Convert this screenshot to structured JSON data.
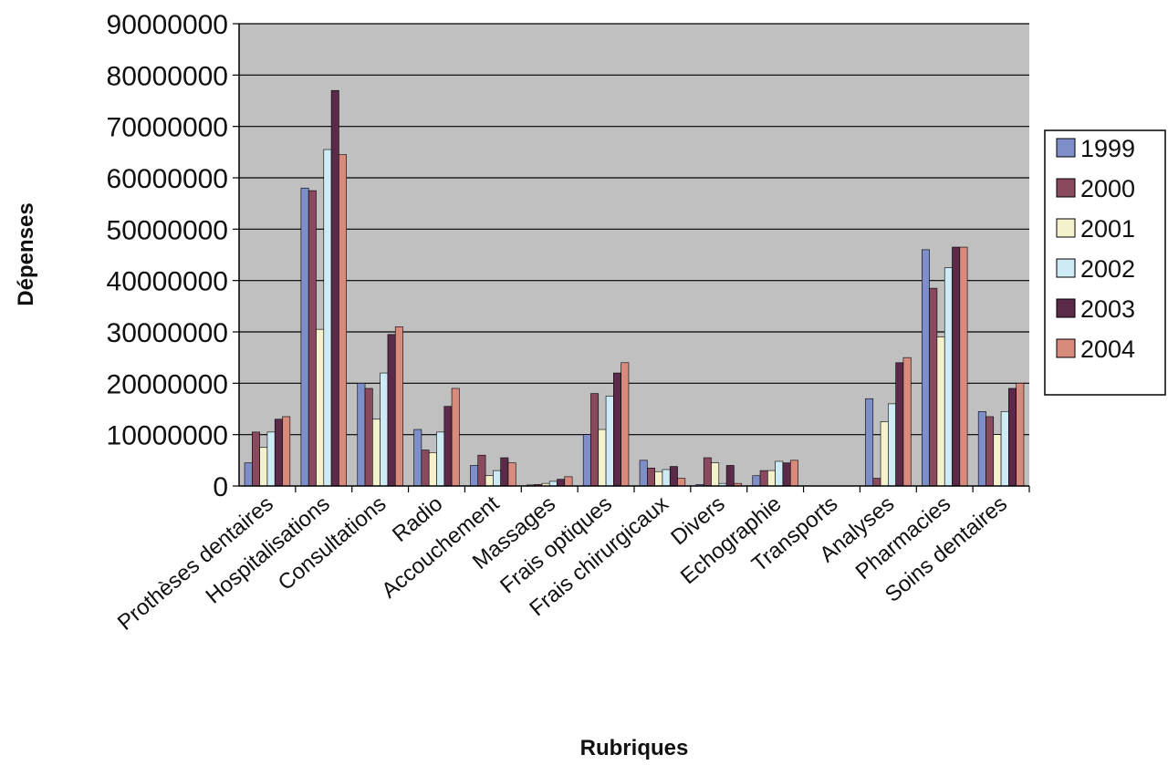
{
  "chart_data": {
    "type": "bar",
    "xlabel": "Rubriques",
    "ylabel": "Dépenses",
    "ylim": [
      0,
      90000000
    ],
    "yticks": [
      0,
      10000000,
      20000000,
      30000000,
      40000000,
      50000000,
      60000000,
      70000000,
      80000000,
      90000000
    ],
    "grid": true,
    "legend_position": "right",
    "plot_background": "#c0c0c0",
    "categories": [
      "Prothèses dentaires",
      "Hospitalisations",
      "Consultations",
      "Radio",
      "Accouchement",
      "Massages",
      "Frais optiques",
      "Frais chirurgicaux",
      "Divers",
      "Echographie",
      "Transports",
      "Analyses",
      "Pharmacies",
      "Soins dentaires"
    ],
    "series": [
      {
        "name": "1999",
        "color": "#7d8ec8",
        "values": [
          4500000,
          58000000,
          20000000,
          11000000,
          4000000,
          200000,
          10000000,
          5000000,
          300000,
          2000000,
          0,
          17000000,
          46000000,
          14500000
        ]
      },
      {
        "name": "2000",
        "color": "#8a4a5e",
        "values": [
          10500000,
          57500000,
          19000000,
          7000000,
          6000000,
          300000,
          18000000,
          3500000,
          5500000,
          3000000,
          0,
          1500000,
          38500000,
          13500000
        ]
      },
      {
        "name": "2001",
        "color": "#f4f2cc",
        "values": [
          7500000,
          30500000,
          13000000,
          6500000,
          2000000,
          500000,
          11000000,
          2800000,
          4500000,
          3000000,
          0,
          12500000,
          29000000,
          10000000
        ]
      },
      {
        "name": "2002",
        "color": "#cdeaf5",
        "values": [
          10500000,
          65500000,
          22000000,
          10500000,
          3000000,
          900000,
          17500000,
          3200000,
          500000,
          4800000,
          0,
          16000000,
          42500000,
          14500000
        ]
      },
      {
        "name": "2003",
        "color": "#5a2a48",
        "values": [
          13000000,
          77000000,
          29500000,
          15500000,
          5500000,
          1300000,
          22000000,
          3800000,
          4000000,
          4500000,
          0,
          24000000,
          46500000,
          19000000
        ]
      },
      {
        "name": "2004",
        "color": "#d88a7c",
        "values": [
          13500000,
          64500000,
          31000000,
          19000000,
          4500000,
          1800000,
          24000000,
          1500000,
          500000,
          5000000,
          0,
          25000000,
          46500000,
          20000000
        ]
      }
    ]
  }
}
